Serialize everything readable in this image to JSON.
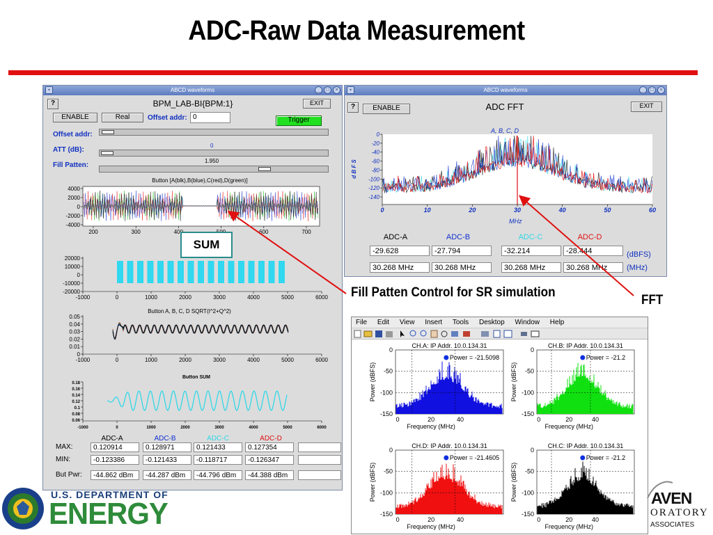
{
  "slide": {
    "title": "ADC-Raw Data Measurement",
    "colors": {
      "accent_line": "#e01010",
      "arrow": "#e01010"
    }
  },
  "left_window": {
    "titlebar": "ABCD waveforms",
    "help_label": "?",
    "heading": "BPM_LAB-BI{BPM:1}",
    "exit_label": "EXIT",
    "enable_label": "ENABLE",
    "mode_label": "Real",
    "offset_addr_label": "Offset addr:",
    "offset_addr_value": "0",
    "trigger_label": "Trigger",
    "sliders": [
      {
        "label": "Offset addr:",
        "value": "",
        "level": 0.03
      },
      {
        "label": "ATT (dB):",
        "value": "0",
        "level": 0.0
      },
      {
        "label": "Fill Patten:",
        "value": "1.950",
        "level": 0.72
      }
    ],
    "plot1": {
      "title": "Button [A(blk),B(blue),C(red),D(green)]",
      "yticks": [
        "4000",
        "2000",
        "0",
        "-2000",
        "-4000"
      ],
      "xticks": [
        "200",
        "300",
        "400",
        "500",
        "600",
        "700"
      ]
    },
    "plot2": {
      "yticks": [
        "20000",
        "10000",
        "0",
        "-10000",
        "-20000"
      ],
      "xticks": [
        "-1000",
        "0",
        "1000",
        "2000",
        "3000",
        "4000",
        "5000",
        "6000"
      ]
    },
    "plot3": {
      "title": "Button A, B, C, D  SQRT(I^2+Q^2)",
      "yticks": [
        "0.05",
        "0.04",
        "0.03",
        "0.02",
        "0.01",
        "0"
      ],
      "xticks": [
        "-1000",
        "0",
        "1000",
        "2000",
        "3000",
        "4000",
        "5000",
        "6000"
      ]
    },
    "plot4": {
      "title": "Button SUM",
      "yticks": [
        "0.18",
        "0.16",
        "0.14",
        "0.12",
        "0.1",
        "0.08",
        "0.06"
      ],
      "xticks": [
        "-1000",
        "0",
        "1000",
        "2000",
        "3000",
        "4000",
        "5000",
        "6000"
      ]
    },
    "table": {
      "columns": [
        {
          "name": "ADC-A",
          "color": "#000000"
        },
        {
          "name": "ADC-B",
          "color": "#1030d0"
        },
        {
          "name": "ADC-C",
          "color": "#30d8e8"
        },
        {
          "name": "ADC-D",
          "color": "#e01010"
        }
      ],
      "rows": [
        {
          "label": "MAX:",
          "values": [
            "0.120914",
            "0.128971",
            "0.121433",
            "0.127354"
          ]
        },
        {
          "label": "MIN:",
          "values": [
            "-0.123386",
            "-0.121433",
            "-0.118717",
            "-0.126347"
          ]
        },
        {
          "label": "But Pwr:",
          "values": [
            "-44.862 dBm",
            "-44.287 dBm",
            "-44.796 dBm",
            "-44.388 dBm"
          ]
        }
      ]
    }
  },
  "sum_label": "SUM",
  "right_window": {
    "titlebar": "ABCD waveforms",
    "help_label": "?",
    "enable_label": "ENABLE",
    "heading": "ADC FFT",
    "exit_label": "EXIT",
    "plot": {
      "legend": "A, B, C, D",
      "ylabel": "d B F S",
      "xlabel": "MHz",
      "yticks": [
        "0",
        "-20",
        "-40",
        "-60",
        "-80",
        "-100",
        "-120",
        "-140"
      ],
      "xticks": [
        "0",
        "10",
        "20",
        "30",
        "40",
        "50",
        "60"
      ]
    },
    "columns": [
      {
        "name": "ADC-A",
        "color": "#000000"
      },
      {
        "name": "ADC-B",
        "color": "#1030d0"
      },
      {
        "name": "ADC-C",
        "color": "#30d8e8"
      },
      {
        "name": "ADC-D",
        "color": "#e01010"
      }
    ],
    "dbfs": [
      "-29.628",
      "-27.794",
      "-32.214",
      "-28.444"
    ],
    "mhz": [
      "30.268 MHz",
      "30.268 MHz",
      "30.268 MHz",
      "30.268 MHz"
    ],
    "dbfs_unit": "(dBFS)",
    "mhz_unit": "(MHz)"
  },
  "callouts": {
    "fill": "Fill Patten Control for SR simulation",
    "fft": "FFT"
  },
  "matlab": {
    "menu": [
      "File",
      "Edit",
      "View",
      "Insert",
      "Tools",
      "Desktop",
      "Window",
      "Help"
    ],
    "ylabel": "Power (dBFS)",
    "xlabel": "Frequency (MHz)",
    "yticks": [
      "0",
      "-50",
      "-100",
      "-150"
    ],
    "xticks": [
      "0",
      "20",
      "40"
    ],
    "panels": [
      {
        "title": "CH.A: IP Addr.  10.0.134.31",
        "power": "Power = -21.5098",
        "color": "#1010e0"
      },
      {
        "title": "CH.B: IP Addr.  10.0.134.31",
        "power": "Power = -21.2",
        "color": "#10e010"
      },
      {
        "title": "CH.D: IP Addr.  10.0.134.31",
        "power": "Power = -21.4605",
        "color": "#f01010"
      },
      {
        "title": "CH.C: IP Addr.  10.0.134.31",
        "power": "Power = -21.2",
        "color": "#000000"
      }
    ]
  },
  "footer": {
    "doe_top": "U.S. DEPARTMENT OF",
    "doe_main": "ENERGY",
    "bnl_1": "AVEN",
    "bnl_2": "ORATORY",
    "bnl_3": "ASSOCIATES"
  }
}
